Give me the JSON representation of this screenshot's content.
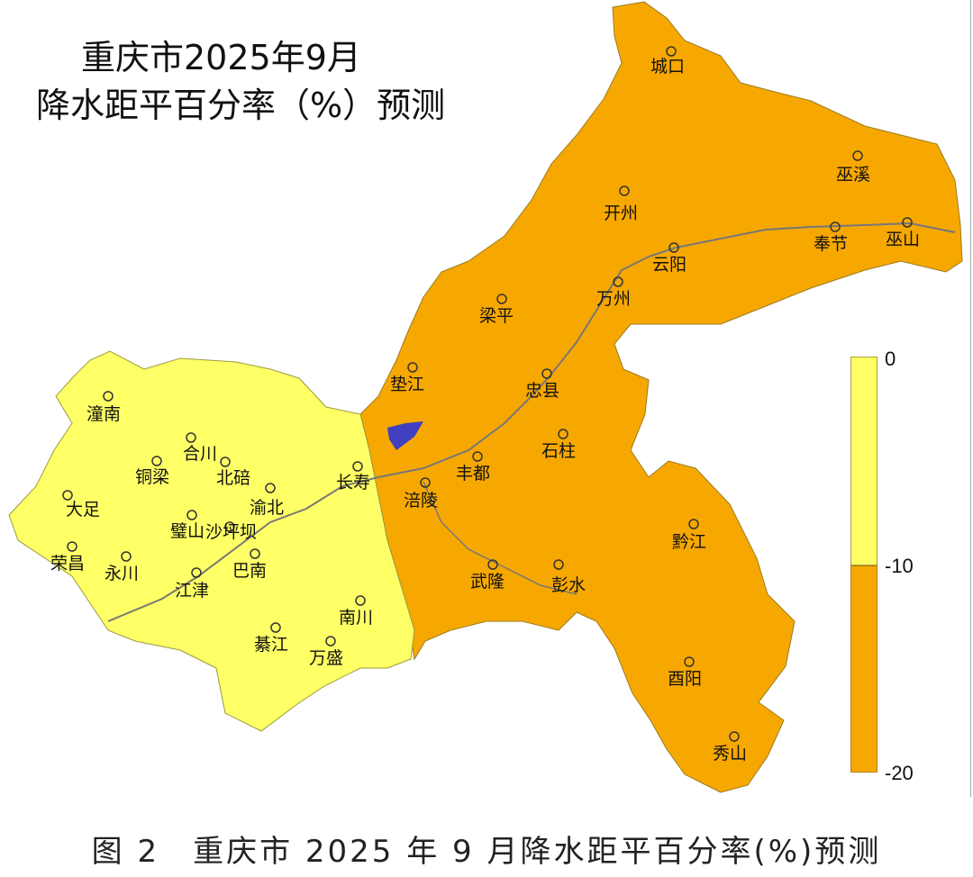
{
  "title_line1": "重庆市2025年9月",
  "title_line2": "降水距平百分率（%）预测",
  "caption": "图 2　重庆市 2025 年 9 月降水距平百分率(%)预测",
  "legend": {
    "labels": [
      "0",
      "-10",
      "-20"
    ],
    "classes": [
      {
        "range": "0 ~ -10",
        "color": "#FFFF66"
      },
      {
        "range": "-10 ~ -20",
        "color": "#F7A800"
      }
    ]
  },
  "regions": {
    "west_class": "0 ~ -10",
    "east_class": "-10 ~ -20"
  },
  "cities": [
    "城口",
    "巫溪",
    "开州",
    "奉节",
    "巫山",
    "云阳",
    "万州",
    "梁平",
    "垫江",
    "忠县",
    "石柱",
    "丰都",
    "长寿",
    "涪陵",
    "黔江",
    "武隆",
    "彭水",
    "酉阳",
    "秀山",
    "潼南",
    "合川",
    "铜梁",
    "北碚",
    "渝北",
    "大足",
    "璧山",
    "沙坪坝",
    "荣昌",
    "永川",
    "江津",
    "巴南",
    "南川",
    "綦江",
    "万盛"
  ]
}
